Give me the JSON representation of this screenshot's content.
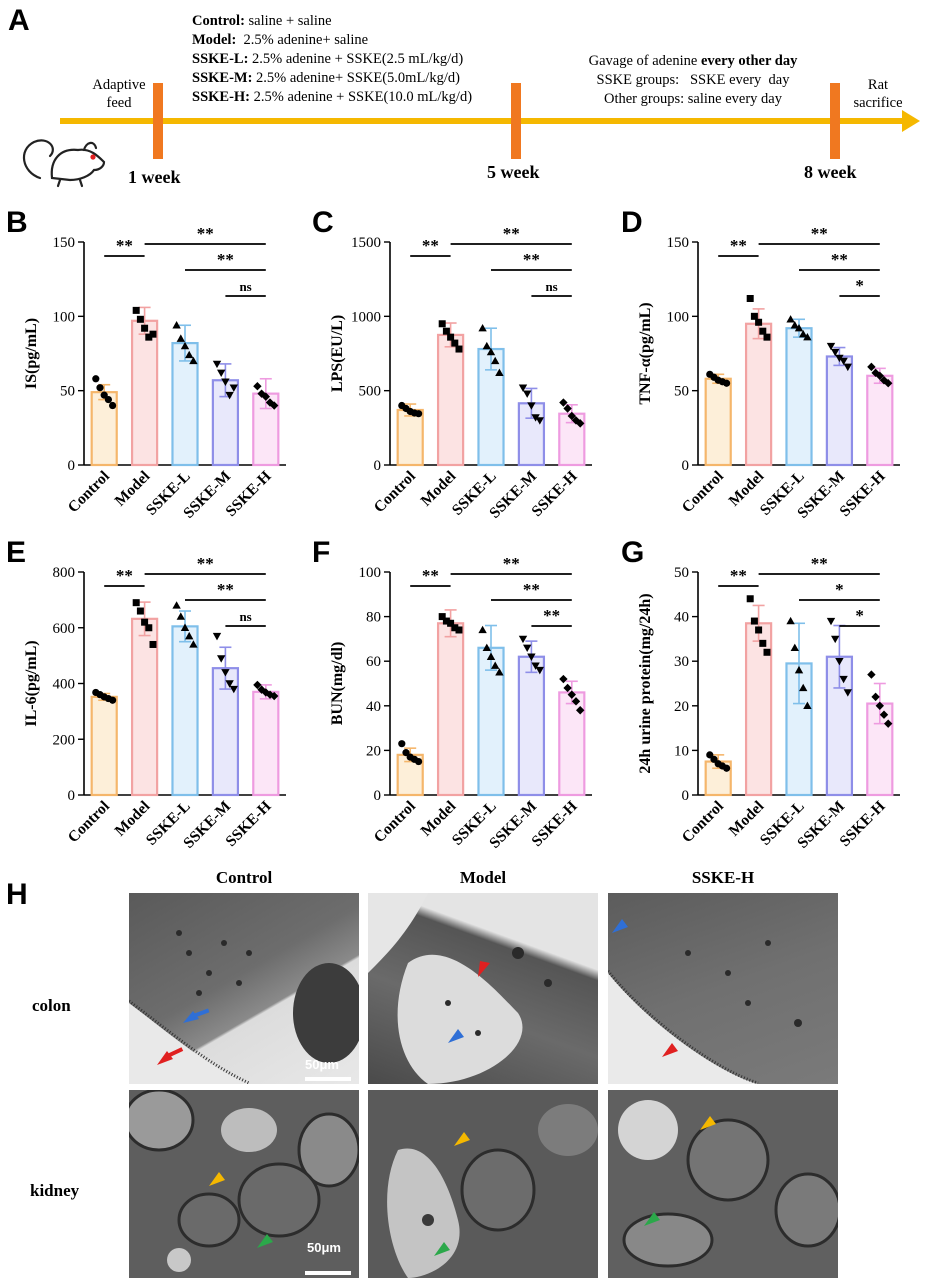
{
  "panel_labels": {
    "A": "A",
    "B": "B",
    "C": "C",
    "D": "D",
    "E": "E",
    "F": "F",
    "G": "G",
    "H": "H"
  },
  "timeline": {
    "groups": [
      {
        "name": "Control:",
        "desc": " saline + saline"
      },
      {
        "name": "Model:",
        "desc": "  2.5% adenine+ saline"
      },
      {
        "name": "SSKE-L:",
        "desc": " 2.5% adenine + SSKE(2.5 mL/kg/d)"
      },
      {
        "name": "SSKE-M:",
        "desc": " 2.5% adenine+ SSKE(5.0mL/kg/d)"
      },
      {
        "name": "SSKE-H:",
        "desc": " 2.5% adenine + SSKE(10.0 mL/kg/d)"
      }
    ],
    "adaptive_line1": "Adaptive",
    "adaptive_line2": "feed",
    "gavage_prefix": "Gavage of adenine ",
    "gavage_bold": "every other day",
    "sske_groups": "SSKE groups:   SSKE every  day",
    "other_groups": "Other groups: saline every day",
    "rat_line1": "Rat",
    "rat_line2": "sacrifice",
    "week1": "1 week",
    "week5": "5 week",
    "week8": "8 week",
    "colors": {
      "arrow": "#F5B800",
      "marker": "#F07820"
    }
  },
  "chart_data": [
    {
      "id": "B",
      "type": "bar",
      "ylabel": "IS(pg/mL)",
      "ylim": [
        0,
        150
      ],
      "yticks": [
        0,
        50,
        100,
        150
      ],
      "categories": [
        "Control",
        "Model",
        "SSKE-L",
        "SSKE-M",
        "SSKE-H"
      ],
      "values": [
        49,
        97,
        82,
        57,
        48
      ],
      "errors": [
        5,
        9,
        12,
        11,
        10
      ],
      "points": [
        [
          58,
          52,
          47,
          44,
          40
        ],
        [
          104,
          98,
          92,
          86,
          88
        ],
        [
          94,
          85,
          80,
          74,
          70
        ],
        [
          68,
          62,
          56,
          47,
          52
        ],
        [
          53,
          48,
          46,
          42,
          40
        ]
      ],
      "sig": [
        {
          "from": 0,
          "to": 1,
          "label": "**"
        },
        {
          "from": 1,
          "to": 4,
          "label": "**"
        },
        {
          "from": 2,
          "to": 4,
          "label": "**"
        },
        {
          "from": 3,
          "to": 4,
          "label": "ns"
        }
      ]
    },
    {
      "id": "C",
      "type": "bar",
      "ylabel": "LPS(EU/L)",
      "ylim": [
        0,
        1500
      ],
      "yticks": [
        0,
        500,
        1000,
        1500
      ],
      "categories": [
        "Control",
        "Model",
        "SSKE-L",
        "SSKE-M",
        "SSKE-H"
      ],
      "values": [
        370,
        875,
        780,
        415,
        345
      ],
      "errors": [
        40,
        80,
        140,
        100,
        60
      ],
      "points": [
        [
          400,
          380,
          360,
          350,
          345
        ],
        [
          950,
          900,
          860,
          820,
          780
        ],
        [
          920,
          800,
          760,
          700,
          620
        ],
        [
          520,
          480,
          400,
          320,
          300
        ],
        [
          420,
          380,
          330,
          300,
          280
        ]
      ],
      "sig": [
        {
          "from": 0,
          "to": 1,
          "label": "**"
        },
        {
          "from": 1,
          "to": 4,
          "label": "**"
        },
        {
          "from": 2,
          "to": 4,
          "label": "**"
        },
        {
          "from": 3,
          "to": 4,
          "label": "ns"
        }
      ]
    },
    {
      "id": "D",
      "type": "bar",
      "ylabel": "TNF-α(pg/mL)",
      "ylim": [
        0,
        150
      ],
      "yticks": [
        0,
        50,
        100,
        150
      ],
      "categories": [
        "Control",
        "Model",
        "SSKE-L",
        "SSKE-M",
        "SSKE-H"
      ],
      "values": [
        58,
        95,
        92,
        73,
        60
      ],
      "errors": [
        3,
        10,
        6,
        6,
        5
      ],
      "points": [
        [
          61,
          59,
          57,
          56,
          55
        ],
        [
          112,
          100,
          96,
          90,
          86
        ],
        [
          98,
          94,
          92,
          88,
          86
        ],
        [
          80,
          76,
          72,
          70,
          66
        ],
        [
          66,
          62,
          60,
          57,
          55
        ]
      ],
      "sig": [
        {
          "from": 0,
          "to": 1,
          "label": "**"
        },
        {
          "from": 1,
          "to": 4,
          "label": "**"
        },
        {
          "from": 2,
          "to": 4,
          "label": "**"
        },
        {
          "from": 3,
          "to": 4,
          "label": "*"
        }
      ]
    },
    {
      "id": "E",
      "type": "bar",
      "ylabel": "IL-6(pg/mL)",
      "ylim": [
        0,
        800
      ],
      "yticks": [
        0,
        200,
        400,
        600,
        800
      ],
      "categories": [
        "Control",
        "Model",
        "SSKE-L",
        "SSKE-M",
        "SSKE-H"
      ],
      "values": [
        352,
        632,
        605,
        455,
        370
      ],
      "errors": [
        12,
        60,
        55,
        75,
        25
      ],
      "points": [
        [
          368,
          360,
          352,
          346,
          340
        ],
        [
          690,
          660,
          620,
          600,
          540
        ],
        [
          680,
          640,
          600,
          570,
          540
        ],
        [
          570,
          490,
          440,
          400,
          380
        ],
        [
          395,
          378,
          368,
          360,
          355
        ]
      ],
      "sig": [
        {
          "from": 0,
          "to": 1,
          "label": "**"
        },
        {
          "from": 1,
          "to": 4,
          "label": "**"
        },
        {
          "from": 2,
          "to": 4,
          "label": "**"
        },
        {
          "from": 3,
          "to": 4,
          "label": "ns"
        }
      ]
    },
    {
      "id": "F",
      "type": "bar",
      "ylabel": "BUN(mg/dl)",
      "ylim": [
        0,
        100
      ],
      "yticks": [
        0,
        20,
        40,
        60,
        80,
        100
      ],
      "categories": [
        "Control",
        "Model",
        "SSKE-L",
        "SSKE-M",
        "SSKE-H"
      ],
      "values": [
        18,
        77,
        66,
        62,
        46
      ],
      "errors": [
        3,
        6,
        10,
        7,
        5
      ],
      "points": [
        [
          23,
          19,
          17,
          16,
          15
        ],
        [
          80,
          78,
          77,
          75,
          74
        ],
        [
          74,
          66,
          62,
          58,
          55
        ],
        [
          70,
          66,
          62,
          58,
          56
        ],
        [
          52,
          48,
          45,
          42,
          38
        ]
      ],
      "sig": [
        {
          "from": 0,
          "to": 1,
          "label": "**"
        },
        {
          "from": 1,
          "to": 4,
          "label": "**"
        },
        {
          "from": 2,
          "to": 4,
          "label": "**"
        },
        {
          "from": 3,
          "to": 4,
          "label": "**"
        }
      ]
    },
    {
      "id": "G",
      "type": "bar",
      "ylabel": "24h urine protein(mg/24h)",
      "ylim": [
        0,
        50
      ],
      "yticks": [
        0,
        10,
        20,
        30,
        40,
        50
      ],
      "categories": [
        "Control",
        "Model",
        "SSKE-L",
        "SSKE-M",
        "SSKE-H"
      ],
      "values": [
        7.5,
        38.5,
        29.5,
        31,
        20.5
      ],
      "errors": [
        1.5,
        4,
        9,
        7,
        4.5
      ],
      "points": [
        [
          9,
          8,
          7,
          6.5,
          6
        ],
        [
          44,
          39,
          37,
          34,
          32
        ],
        [
          39,
          33,
          28,
          24,
          20
        ],
        [
          39,
          35,
          30,
          26,
          23
        ],
        [
          27,
          22,
          20,
          18,
          16
        ]
      ],
      "sig": [
        {
          "from": 0,
          "to": 1,
          "label": "**"
        },
        {
          "from": 1,
          "to": 4,
          "label": "**"
        },
        {
          "from": 2,
          "to": 4,
          "label": "*"
        },
        {
          "from": 3,
          "to": 4,
          "label": "*"
        }
      ]
    }
  ],
  "series_colors": {
    "edge": [
      "#F5B66B",
      "#F2A2A2",
      "#7FBFEA",
      "#8E8EE8",
      "#EE9BE0"
    ],
    "fill": [
      "#FDEFD9",
      "#FCE3E3",
      "#E2F1FC",
      "#E8E8FB",
      "#FCE6F7"
    ]
  },
  "micrographs": {
    "columns": [
      "Control",
      "Model",
      "SSKE-H"
    ],
    "rows": [
      "colon",
      "kidney"
    ],
    "scale_bar": "50μm"
  }
}
